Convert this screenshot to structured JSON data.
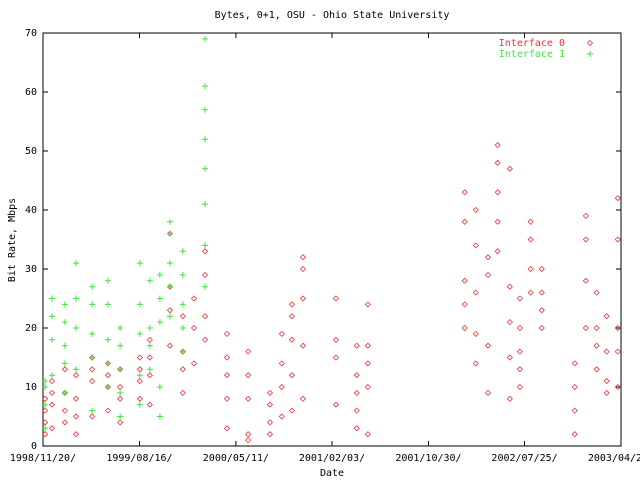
{
  "chart_data": {
    "type": "scatter",
    "title": "Bytes, 0+1, OSU - Ohio State University",
    "xlabel": "Date",
    "ylabel": "Bit Rate, Mbps",
    "xlim": [
      "1998/11/20",
      "2003/04/20"
    ],
    "xticks": [
      {
        "value": "1998/11/20",
        "label": "1998/11/20/"
      },
      {
        "value": "1999/08/16",
        "label": "1999/08/16/"
      },
      {
        "value": "2000/05/11",
        "label": "2000/05/11/"
      },
      {
        "value": "2001/02/03",
        "label": "2001/02/03/"
      },
      {
        "value": "2001/10/30",
        "label": "2001/10/30/"
      },
      {
        "value": "2002/07/25",
        "label": "2002/07/25/"
      },
      {
        "value": "2003/04/20",
        "label": "2003/04/20/"
      }
    ],
    "ylim": [
      0,
      70
    ],
    "yticks": [
      0,
      10,
      20,
      30,
      40,
      50,
      60,
      70
    ],
    "grid": false,
    "legend": "top-right",
    "series": [
      {
        "name": "Interface 0",
        "color": "#e8363a",
        "marker": "diamond",
        "x": [
          "1998/11/26",
          "1998/11/26",
          "1998/11/26",
          "1998/11/26",
          "1998/12/15",
          "1998/12/15",
          "1998/12/15",
          "1998/12/15",
          "1999/01/20",
          "1999/01/20",
          "1999/01/20",
          "1999/01/20",
          "1999/02/20",
          "1999/02/20",
          "1999/02/20",
          "1999/02/20",
          "1999/04/06",
          "1999/04/06",
          "1999/04/06",
          "1999/04/06",
          "1999/05/20",
          "1999/05/20",
          "1999/05/20",
          "1999/05/20",
          "1999/06/23",
          "1999/06/23",
          "1999/06/23",
          "1999/06/23",
          "1999/08/17",
          "1999/08/17",
          "1999/08/17",
          "1999/08/17",
          "1999/09/14",
          "1999/09/14",
          "1999/09/14",
          "1999/09/14",
          "1999/11/09",
          "1999/11/09",
          "1999/11/09",
          "1999/11/09",
          "1999/12/15",
          "1999/12/15",
          "1999/12/15",
          "1999/12/15",
          "2000/01/15",
          "2000/01/15",
          "2000/01/15",
          "2000/02/15",
          "2000/02/15",
          "2000/02/15",
          "2000/02/15",
          "2000/04/16",
          "2000/04/16",
          "2000/04/16",
          "2000/04/16",
          "2000/04/16",
          "2000/06/14",
          "2000/06/14",
          "2000/06/14",
          "2000/06/14",
          "2000/06/14",
          "2000/08/14",
          "2000/08/14",
          "2000/08/14",
          "2000/08/14",
          "2000/09/16",
          "2000/09/16",
          "2000/09/16",
          "2000/09/16",
          "2000/10/14",
          "2000/10/14",
          "2000/10/14",
          "2000/10/14",
          "2000/10/14",
          "2000/11/14",
          "2000/11/14",
          "2000/11/14",
          "2000/11/14",
          "2000/11/14",
          "2001/02/14",
          "2001/02/14",
          "2001/02/14",
          "2001/02/14",
          "2001/04/13",
          "2001/04/13",
          "2001/04/13",
          "2001/04/13",
          "2001/04/13",
          "2001/05/14",
          "2001/05/14",
          "2001/05/14",
          "2001/05/14",
          "2001/05/14",
          "2002/02/08",
          "2002/02/08",
          "2002/02/08",
          "2002/02/08",
          "2002/02/08",
          "2002/03/11",
          "2002/03/11",
          "2002/03/11",
          "2002/03/11",
          "2002/03/11",
          "2002/04/14",
          "2002/04/14",
          "2002/04/14",
          "2002/04/14",
          "2002/05/11",
          "2002/05/11",
          "2002/05/11",
          "2002/05/11",
          "2002/05/11",
          "2002/06/14",
          "2002/06/14",
          "2002/06/14",
          "2002/06/14",
          "2002/06/14",
          "2002/07/12",
          "2002/07/12",
          "2002/07/12",
          "2002/07/12",
          "2002/07/12",
          "2002/08/11",
          "2002/08/11",
          "2002/08/11",
          "2002/08/11",
          "2002/09/11",
          "2002/09/11",
          "2002/09/11",
          "2002/09/11",
          "2002/12/12",
          "2002/12/12",
          "2002/12/12",
          "2002/12/12",
          "2003/01/12",
          "2003/01/12",
          "2003/01/12",
          "2003/01/12",
          "2003/02/11",
          "2003/02/11",
          "2003/02/11",
          "2003/02/11",
          "2003/03/11",
          "2003/03/11",
          "2003/03/11",
          "2003/03/11",
          "2003/04/11",
          "2003/04/11",
          "2003/04/11",
          "2003/04/11",
          "2003/04/11"
        ],
        "values": [
          2,
          4,
          6,
          8,
          3,
          7,
          9,
          11,
          4,
          6,
          9,
          13,
          2,
          5,
          8,
          12,
          5,
          11,
          13,
          15,
          6,
          10,
          12,
          14,
          4,
          8,
          10,
          13,
          8,
          11,
          13,
          15,
          7,
          12,
          15,
          18,
          17,
          23,
          27,
          36,
          9,
          13,
          16,
          22,
          14,
          20,
          25,
          18,
          22,
          29,
          33,
          3,
          8,
          12,
          15,
          19,
          1,
          2,
          8,
          12,
          16,
          2,
          4,
          7,
          9,
          5,
          10,
          14,
          19,
          6,
          12,
          18,
          22,
          24,
          8,
          17,
          25,
          30,
          32,
          7,
          15,
          18,
          25,
          3,
          6,
          9,
          12,
          17,
          2,
          10,
          14,
          17,
          24,
          20,
          24,
          28,
          38,
          43,
          14,
          19,
          26,
          34,
          40,
          9,
          17,
          29,
          32,
          33,
          38,
          43,
          48,
          51,
          8,
          15,
          21,
          27,
          47,
          10,
          13,
          16,
          20,
          25,
          26,
          30,
          35,
          38,
          20,
          23,
          26,
          30,
          2,
          6,
          10,
          14,
          20,
          28,
          35,
          39,
          13,
          17,
          20,
          26,
          9,
          11,
          16,
          22,
          10,
          16,
          20,
          35,
          42
        ]
      },
      {
        "name": "Interface 1",
        "color": "#3ce63c",
        "marker": "plus",
        "x": [
          "1998/11/26",
          "1998/11/26",
          "1998/11/26",
          "1998/11/26",
          "1998/12/15",
          "1998/12/15",
          "1998/12/15",
          "1998/12/15",
          "1999/01/20",
          "1999/01/20",
          "1999/01/20",
          "1999/01/20",
          "1999/01/20",
          "1999/02/20",
          "1999/02/20",
          "1999/02/20",
          "1999/02/20",
          "1999/04/06",
          "1999/04/06",
          "1999/04/06",
          "1999/04/06",
          "1999/04/06",
          "1999/05/20",
          "1999/05/20",
          "1999/05/20",
          "1999/05/20",
          "1999/05/20",
          "1999/06/23",
          "1999/06/23",
          "1999/06/23",
          "1999/06/23",
          "1999/06/23",
          "1999/08/17",
          "1999/08/17",
          "1999/08/17",
          "1999/08/17",
          "1999/08/17",
          "1999/09/14",
          "1999/09/14",
          "1999/09/14",
          "1999/09/14",
          "1999/10/12",
          "1999/10/12",
          "1999/10/12",
          "1999/10/12",
          "1999/10/12",
          "1999/11/09",
          "1999/11/09",
          "1999/11/09",
          "1999/11/09",
          "1999/11/09",
          "1999/12/15",
          "1999/12/15",
          "1999/12/15",
          "1999/12/15",
          "1999/12/15",
          "2000/02/15",
          "2000/02/15",
          "2000/02/15",
          "2000/02/15",
          "2000/02/15",
          "2000/02/15",
          "2000/02/15",
          "2000/02/15"
        ],
        "values": [
          3,
          7,
          10,
          11,
          12,
          18,
          22,
          25,
          9,
          14,
          17,
          21,
          24,
          13,
          20,
          25,
          31,
          6,
          15,
          19,
          24,
          27,
          10,
          14,
          18,
          24,
          28,
          5,
          9,
          13,
          17,
          20,
          7,
          12,
          19,
          24,
          31,
          13,
          17,
          20,
          28,
          5,
          10,
          21,
          25,
          29,
          22,
          27,
          31,
          36,
          38,
          16,
          20,
          24,
          29,
          33,
          27,
          34,
          41,
          47,
          52,
          57,
          61,
          69
        ]
      }
    ]
  }
}
